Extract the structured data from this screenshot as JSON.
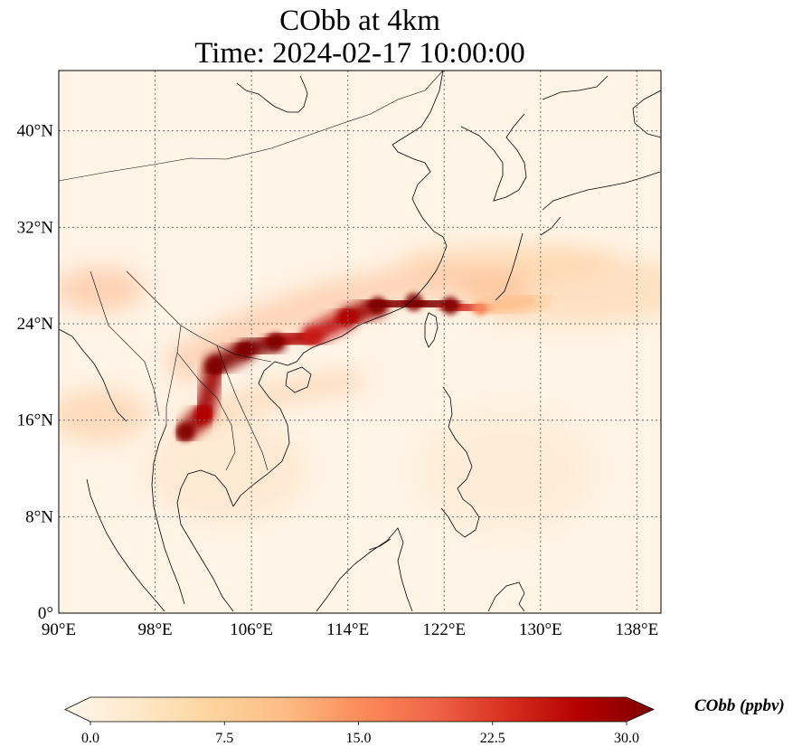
{
  "title": {
    "line1": "CObb at 4km",
    "line2": "Time: 2024-02-17 10:00:00"
  },
  "map": {
    "lon_range": [
      90,
      140
    ],
    "lat_range": [
      0,
      45
    ],
    "lon_ticks": [
      {
        "value": 90,
        "label": "90°E"
      },
      {
        "value": 98,
        "label": "98°E"
      },
      {
        "value": 106,
        "label": "106°E"
      },
      {
        "value": 114,
        "label": "114°E"
      },
      {
        "value": 122,
        "label": "122°E"
      },
      {
        "value": 130,
        "label": "130°E"
      },
      {
        "value": 138,
        "label": "138°E"
      }
    ],
    "lat_ticks": [
      {
        "value": 0,
        "label": "0°"
      },
      {
        "value": 8,
        "label": "8°N"
      },
      {
        "value": 16,
        "label": "16°N"
      },
      {
        "value": 24,
        "label": "24°N"
      },
      {
        "value": 32,
        "label": "32°N"
      },
      {
        "value": 40,
        "label": "40°N"
      }
    ],
    "grid": "dotted",
    "plume": [
      {
        "lon": 100.5,
        "lat": 15.0,
        "value": 30
      },
      {
        "lon": 102.0,
        "lat": 16.5,
        "value": 26
      },
      {
        "lon": 103.0,
        "lat": 20.5,
        "value": 30
      },
      {
        "lon": 105.5,
        "lat": 21.8,
        "value": 30
      },
      {
        "lon": 108.0,
        "lat": 22.5,
        "value": 30
      },
      {
        "lon": 111.0,
        "lat": 23.0,
        "value": 24
      },
      {
        "lon": 114.0,
        "lat": 24.5,
        "value": 26
      },
      {
        "lon": 116.5,
        "lat": 25.5,
        "value": 30
      },
      {
        "lon": 119.5,
        "lat": 25.8,
        "value": 30
      },
      {
        "lon": 122.5,
        "lat": 25.5,
        "value": 30
      },
      {
        "lon": 125.0,
        "lat": 25.2,
        "value": 16
      },
      {
        "lon": 130.0,
        "lat": 26.0,
        "value": 6
      }
    ]
  },
  "colorbar": {
    "label": "CObb (ppbv)",
    "min": 0,
    "max": 30,
    "ticks": [
      "0.0",
      "7.5",
      "15.0",
      "22.5",
      "30.0"
    ],
    "colormap": "OrRd",
    "colors": [
      "#fff7ec",
      "#fee8c8",
      "#fdd49e",
      "#fdbb84",
      "#fc8d59",
      "#ef6548",
      "#d7301f",
      "#b30000",
      "#7f0000"
    ],
    "extend": "both"
  }
}
